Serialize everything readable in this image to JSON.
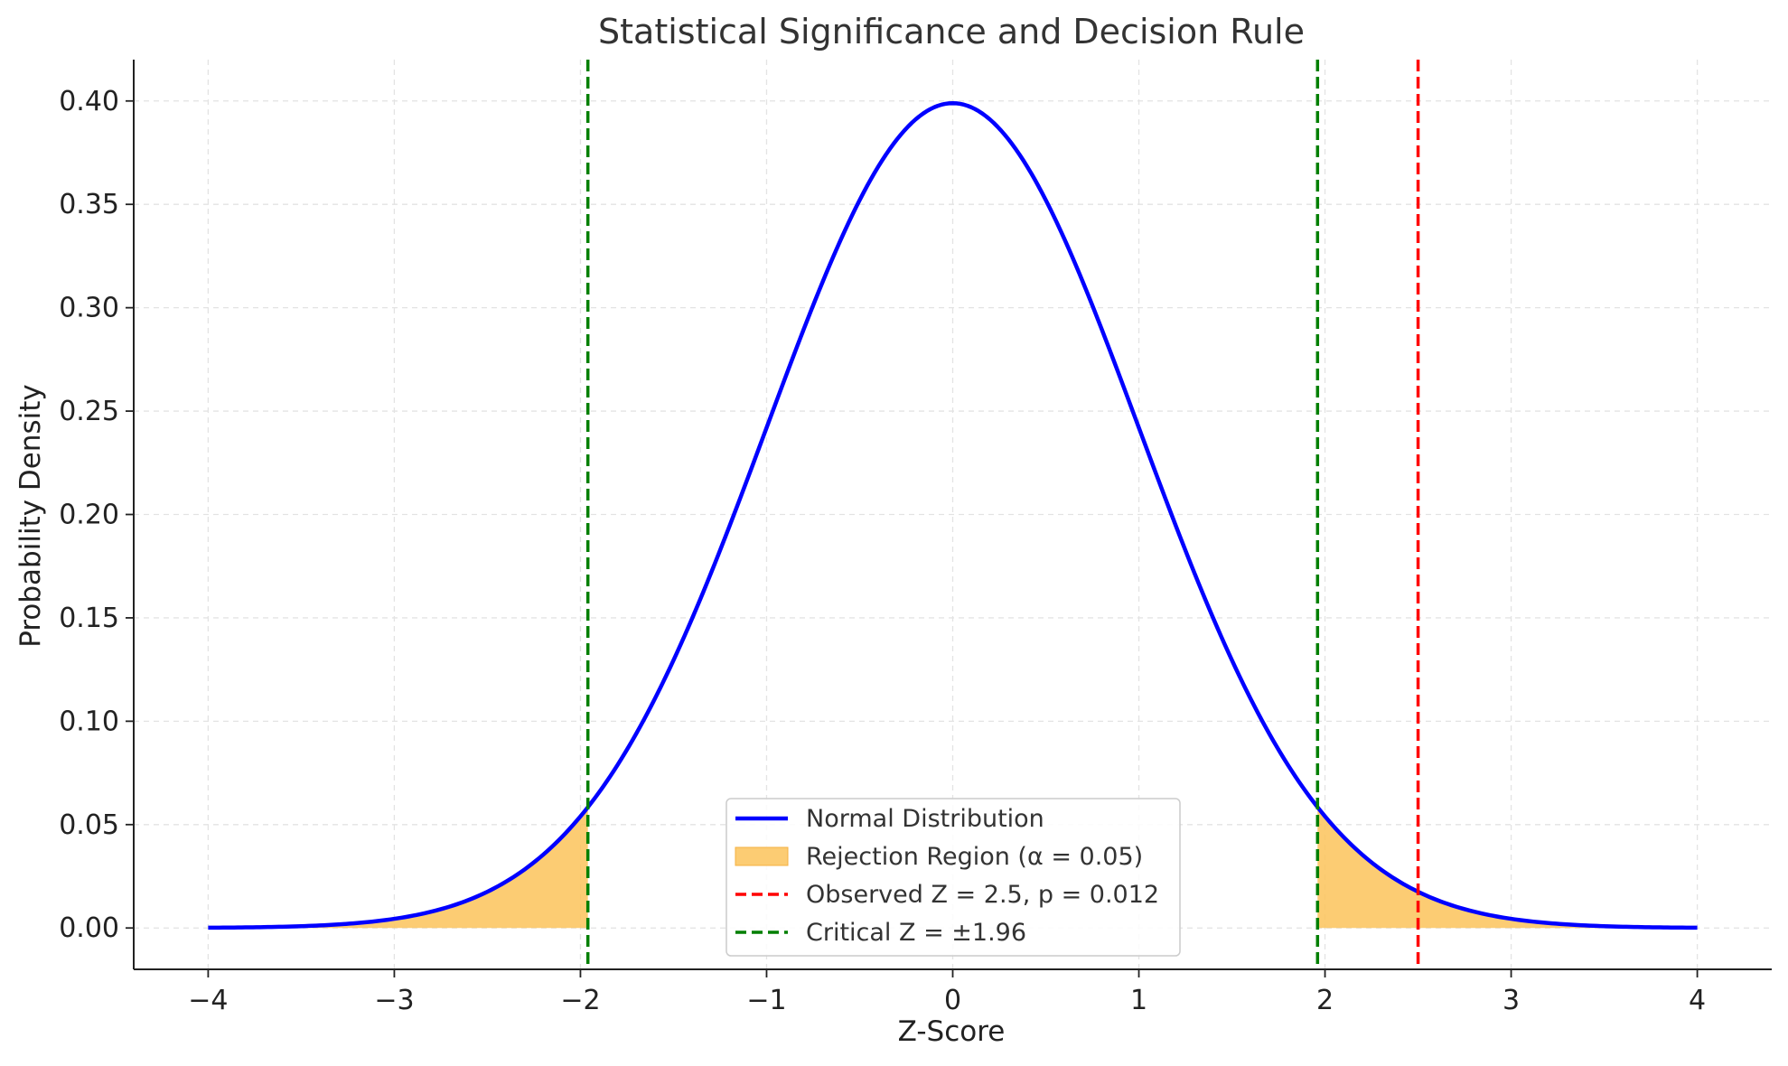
{
  "chart_data": {
    "type": "line",
    "title": "Statistical Significance and Decision Rule",
    "xlabel": "Z-Score",
    "ylabel": "Probability Density",
    "xlim": [
      -4.4,
      4.4
    ],
    "ylim": [
      -0.02,
      0.42
    ],
    "grid": true,
    "legend_position": "bottom-center",
    "x_ticks": [
      -4,
      -3,
      -2,
      -1,
      0,
      1,
      2,
      3,
      4
    ],
    "x_tick_labels": [
      "−4",
      "−3",
      "−2",
      "−1",
      "0",
      "1",
      "2",
      "3",
      "4"
    ],
    "y_ticks": [
      0.0,
      0.05,
      0.1,
      0.15,
      0.2,
      0.25,
      0.3,
      0.35,
      0.4
    ],
    "y_tick_labels": [
      "0.00",
      "0.05",
      "0.10",
      "0.15",
      "0.20",
      "0.25",
      "0.30",
      "0.35",
      "0.40"
    ],
    "series": [
      {
        "name": "Normal Distribution",
        "kind": "line",
        "color": "#0000ff",
        "x": [
          -4.0,
          -3.5,
          -3.0,
          -2.5,
          -2.0,
          -1.5,
          -1.0,
          -0.5,
          0.0,
          0.5,
          1.0,
          1.5,
          2.0,
          2.5,
          3.0,
          3.5,
          4.0
        ],
        "y": [
          0.0001,
          0.0009,
          0.0044,
          0.0175,
          0.054,
          0.1295,
          0.242,
          0.3521,
          0.3989,
          0.3521,
          0.242,
          0.1295,
          0.054,
          0.0175,
          0.0044,
          0.0009,
          0.0001
        ]
      }
    ],
    "regions": [
      {
        "name": "Rejection Region (α = 0.05)",
        "color": "#fbc35b",
        "ranges": [
          [
            -4.0,
            -1.96
          ],
          [
            1.96,
            4.0
          ]
        ]
      }
    ],
    "vlines": [
      {
        "name": "Observed Z = 2.5, p = 0.012",
        "x": 2.5,
        "color": "#ff0000",
        "style": "dashed"
      },
      {
        "name": "Critical Z = ±1.96",
        "x": [
          -1.96,
          1.96
        ],
        "color": "#007f00",
        "style": "dashed"
      }
    ],
    "legend": [
      {
        "label": "Normal Distribution",
        "kind": "line",
        "color": "#0000ff"
      },
      {
        "label": "Rejection Region (α = 0.05)",
        "kind": "patch",
        "color": "#fbc35b"
      },
      {
        "label": "Observed Z = 2.5, p = 0.012",
        "kind": "dashed",
        "color": "#ff0000"
      },
      {
        "label": "Critical Z = ±1.96",
        "kind": "dashed",
        "color": "#007f00"
      }
    ]
  }
}
